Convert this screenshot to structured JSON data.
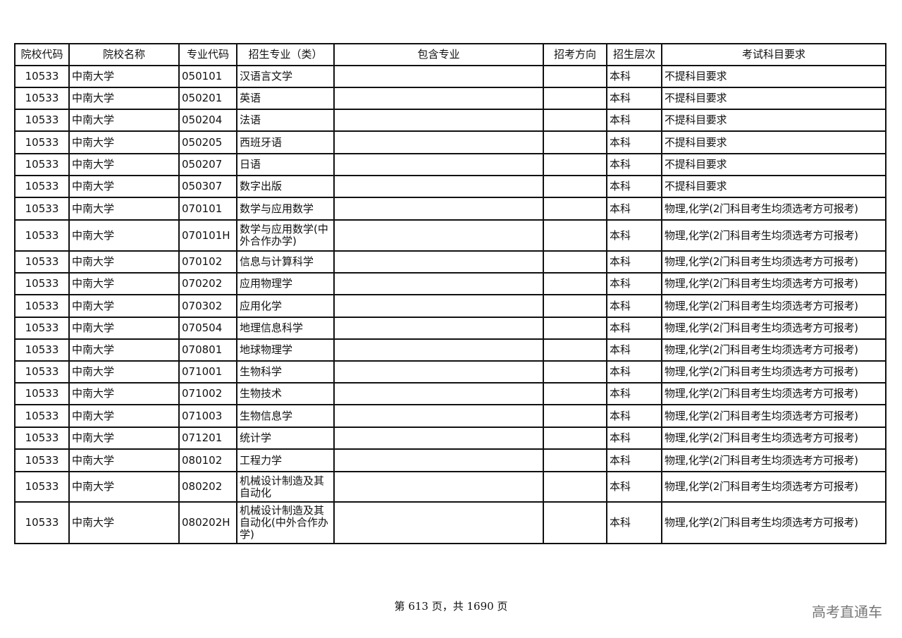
{
  "table": {
    "headers": [
      "院校代码",
      "院校名称",
      "专业代码",
      "招生专业（类）",
      "包含专业",
      "招考方向",
      "招生层次",
      "考试科目要求"
    ],
    "rows": [
      [
        "10533",
        "中南大学",
        "050101",
        "汉语言文学",
        "",
        "",
        "本科",
        "不提科目要求"
      ],
      [
        "10533",
        "中南大学",
        "050201",
        "英语",
        "",
        "",
        "本科",
        "不提科目要求"
      ],
      [
        "10533",
        "中南大学",
        "050204",
        "法语",
        "",
        "",
        "本科",
        "不提科目要求"
      ],
      [
        "10533",
        "中南大学",
        "050205",
        "西班牙语",
        "",
        "",
        "本科",
        "不提科目要求"
      ],
      [
        "10533",
        "中南大学",
        "050207",
        "日语",
        "",
        "",
        "本科",
        "不提科目要求"
      ],
      [
        "10533",
        "中南大学",
        "050307",
        "数字出版",
        "",
        "",
        "本科",
        "不提科目要求"
      ],
      [
        "10533",
        "中南大学",
        "070101",
        "数学与应用数学",
        "",
        "",
        "本科",
        "物理,化学(2门科目考生均须选考方可报考)"
      ],
      [
        "10533",
        "中南大学",
        "070101H",
        "数学与应用数学(中外合作办学)",
        "",
        "",
        "本科",
        "物理,化学(2门科目考生均须选考方可报考)"
      ],
      [
        "10533",
        "中南大学",
        "070102",
        "信息与计算科学",
        "",
        "",
        "本科",
        "物理,化学(2门科目考生均须选考方可报考)"
      ],
      [
        "10533",
        "中南大学",
        "070202",
        "应用物理学",
        "",
        "",
        "本科",
        "物理,化学(2门科目考生均须选考方可报考)"
      ],
      [
        "10533",
        "中南大学",
        "070302",
        "应用化学",
        "",
        "",
        "本科",
        "物理,化学(2门科目考生均须选考方可报考)"
      ],
      [
        "10533",
        "中南大学",
        "070504",
        "地理信息科学",
        "",
        "",
        "本科",
        "物理,化学(2门科目考生均须选考方可报考)"
      ],
      [
        "10533",
        "中南大学",
        "070801",
        "地球物理学",
        "",
        "",
        "本科",
        "物理,化学(2门科目考生均须选考方可报考)"
      ],
      [
        "10533",
        "中南大学",
        "071001",
        "生物科学",
        "",
        "",
        "本科",
        "物理,化学(2门科目考生均须选考方可报考)"
      ],
      [
        "10533",
        "中南大学",
        "071002",
        "生物技术",
        "",
        "",
        "本科",
        "物理,化学(2门科目考生均须选考方可报考)"
      ],
      [
        "10533",
        "中南大学",
        "071003",
        "生物信息学",
        "",
        "",
        "本科",
        "物理,化学(2门科目考生均须选考方可报考)"
      ],
      [
        "10533",
        "中南大学",
        "071201",
        "统计学",
        "",
        "",
        "本科",
        "物理,化学(2门科目考生均须选考方可报考)"
      ],
      [
        "10533",
        "中南大学",
        "080102",
        "工程力学",
        "",
        "",
        "本科",
        "物理,化学(2门科目考生均须选考方可报考)"
      ],
      [
        "10533",
        "中南大学",
        "080202",
        "机械设计制造及其自动化",
        "",
        "",
        "本科",
        "物理,化学(2门科目考生均须选考方可报考)"
      ],
      [
        "10533",
        "中南大学",
        "080202H",
        "机械设计制造及其自动化(中外合作办学)",
        "",
        "",
        "本科",
        "物理,化学(2门科目考生均须选考方可报考)"
      ]
    ]
  },
  "footer": {
    "page_info": "第 613 页，共 1690 页",
    "watermark": "高考直通车"
  }
}
